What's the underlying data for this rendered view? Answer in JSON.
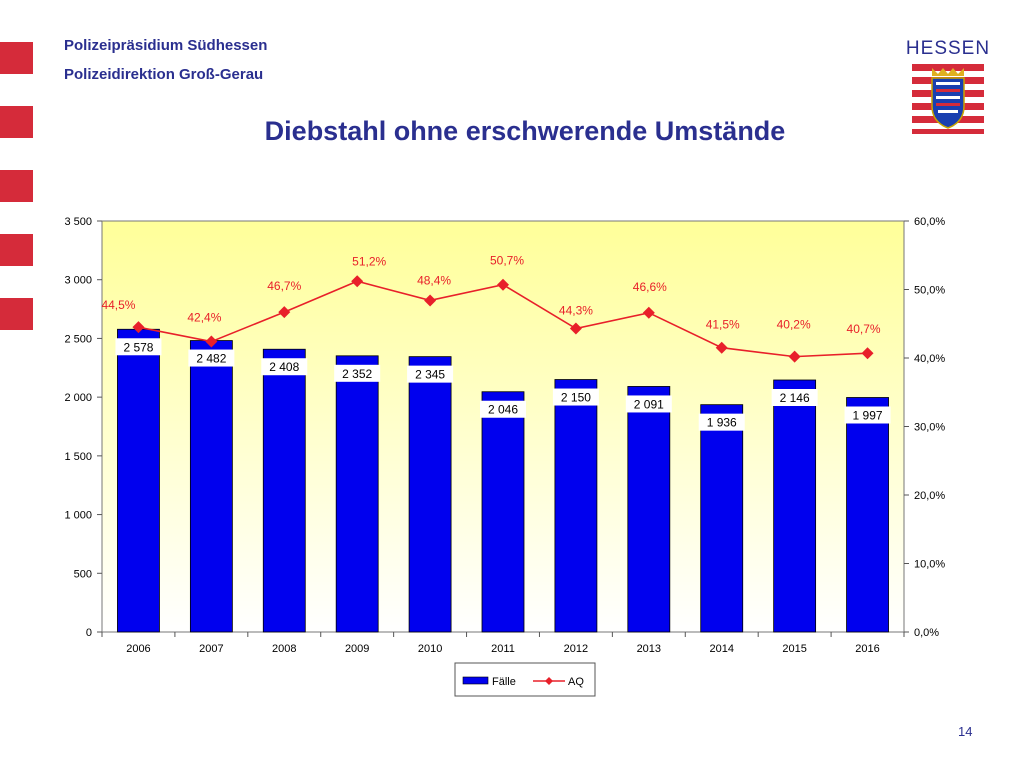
{
  "header": {
    "org_line1": "Polizeipräsidium Südhessen",
    "org_line2": "Polizeidirektion Groß-Gerau",
    "title": "Diebstahl ohne erschwerende Umstände",
    "logo_text": "HESSEN"
  },
  "footer": {
    "page_number": "14"
  },
  "colors": {
    "accent_red": "#d52b3a",
    "title_blue": "#2a2f8f",
    "bar_blue": "#0000ee",
    "line_red": "#e8202a",
    "plot_bg_top": "#ffff99",
    "plot_bg_bottom": "#ffffff"
  },
  "chart_data": {
    "type": "bar",
    "categories": [
      "2006",
      "2007",
      "2008",
      "2009",
      "2010",
      "2011",
      "2012",
      "2013",
      "2014",
      "2015",
      "2016"
    ],
    "series": [
      {
        "name": "Fälle",
        "type": "bar",
        "axis": "left",
        "values": [
          2578,
          2482,
          2408,
          2352,
          2345,
          2046,
          2150,
          2091,
          1936,
          2146,
          1997
        ],
        "labels": [
          "2 578",
          "2 482",
          "2 408",
          "2 352",
          "2 345",
          "2 046",
          "2 150",
          "2 091",
          "1 936",
          "2 146",
          "1 997"
        ]
      },
      {
        "name": "AQ",
        "type": "line",
        "axis": "right",
        "values": [
          44.5,
          42.4,
          46.7,
          51.2,
          48.4,
          50.7,
          44.3,
          46.6,
          41.5,
          40.2,
          40.7
        ],
        "labels": [
          "44,5%",
          "42,4%",
          "46,7%",
          "51,2%",
          "48,4%",
          "50,7%",
          "44,3%",
          "46,6%",
          "41,5%",
          "40,2%",
          "40,7%"
        ]
      }
    ],
    "y_left": {
      "min": 0,
      "max": 3500,
      "ticks": [
        0,
        500,
        1000,
        1500,
        2000,
        2500,
        3000,
        3500
      ],
      "tick_labels": [
        "0",
        "500",
        "1 000",
        "1 500",
        "2 000",
        "2 500",
        "3 000",
        "3 500"
      ]
    },
    "y_right": {
      "min": 0,
      "max": 60,
      "ticks": [
        0,
        10,
        20,
        30,
        40,
        50,
        60
      ],
      "tick_labels": [
        "0,0%",
        "10,0%",
        "20,0%",
        "30,0%",
        "40,0%",
        "50,0%",
        "60,0%"
      ]
    },
    "grid": false,
    "legend_position": "bottom"
  }
}
